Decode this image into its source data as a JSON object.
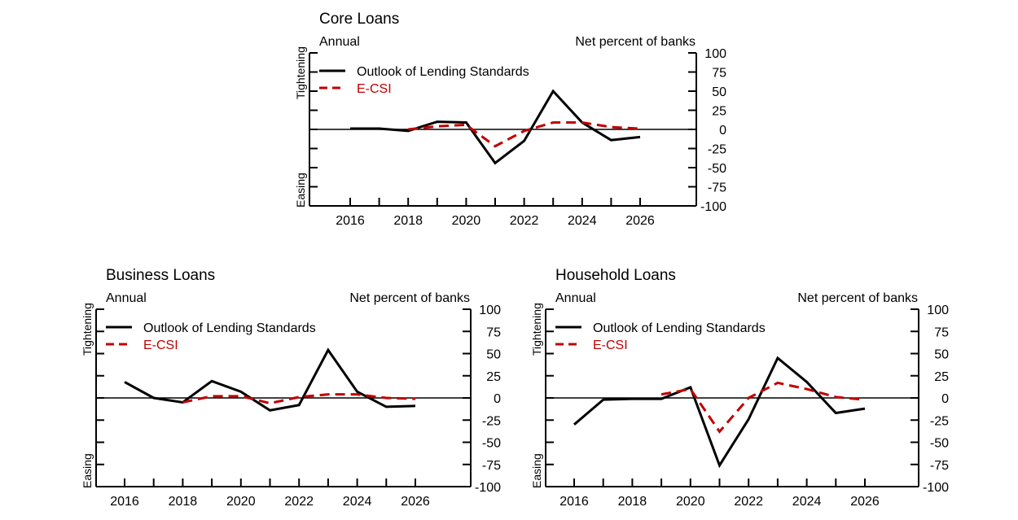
{
  "chart_data": [
    {
      "type": "line",
      "title": "Core Loans",
      "frequency_label": "Annual",
      "ylabel": "Net percent of banks",
      "top_annotation": "Tightening",
      "bottom_annotation": "Easing",
      "ylim": [
        -100,
        100
      ],
      "yticks": [
        100,
        75,
        50,
        25,
        0,
        -25,
        -50,
        -75,
        -100
      ],
      "xticks": [
        2016,
        2018,
        2020,
        2022,
        2024,
        2026
      ],
      "legend_position": "top-left",
      "series": [
        {
          "name": "Outlook of Lending Standards",
          "color": "#000000",
          "style": "solid",
          "x": [
            2016,
            2017,
            2018,
            2019,
            2020,
            2021,
            2022,
            2023,
            2024,
            2025,
            2026
          ],
          "y": [
            1,
            1,
            -2,
            10,
            9,
            -44,
            -15,
            50,
            9,
            -14,
            -10
          ]
        },
        {
          "name": "E-CSI",
          "color": "#c00000",
          "style": "dashed",
          "x": [
            2018,
            2019,
            2020,
            2021,
            2022,
            2023,
            2024,
            2025,
            2026
          ],
          "y": [
            0,
            4,
            6,
            -22,
            -2,
            9,
            9,
            3,
            1
          ]
        }
      ]
    },
    {
      "type": "line",
      "title": "Business Loans",
      "frequency_label": "Annual",
      "ylabel": "Net percent of banks",
      "top_annotation": "Tightening",
      "bottom_annotation": "Easing",
      "ylim": [
        -100,
        100
      ],
      "yticks": [
        100,
        75,
        50,
        25,
        0,
        -25,
        -50,
        -75,
        -100
      ],
      "xticks": [
        2016,
        2018,
        2020,
        2022,
        2024,
        2026
      ],
      "legend_position": "top-left",
      "series": [
        {
          "name": "Outlook of Lending Standards",
          "color": "#000000",
          "style": "solid",
          "x": [
            2016,
            2017,
            2018,
            2019,
            2020,
            2021,
            2022,
            2023,
            2024,
            2025,
            2026
          ],
          "y": [
            18,
            0,
            -5,
            19,
            7,
            -14,
            -8,
            54,
            7,
            -10,
            -9
          ]
        },
        {
          "name": "E-CSI",
          "color": "#c00000",
          "style": "dashed",
          "x": [
            2018,
            2019,
            2020,
            2021,
            2022,
            2023,
            2024,
            2025,
            2026
          ],
          "y": [
            -5,
            2,
            2,
            -6,
            1,
            4,
            4,
            0,
            -1
          ]
        }
      ]
    },
    {
      "type": "line",
      "title": "Household Loans",
      "frequency_label": "Annual",
      "ylabel": "Net percent of banks",
      "top_annotation": "Tightening",
      "bottom_annotation": "Easing",
      "ylim": [
        -100,
        100
      ],
      "yticks": [
        100,
        75,
        50,
        25,
        0,
        -25,
        -50,
        -75,
        -100
      ],
      "xticks": [
        2016,
        2018,
        2020,
        2022,
        2024,
        2026
      ],
      "legend_position": "top-left",
      "series": [
        {
          "name": "Outlook of Lending Standards",
          "color": "#000000",
          "style": "solid",
          "x": [
            2016,
            2017,
            2018,
            2019,
            2020,
            2021,
            2022,
            2023,
            2024,
            2025,
            2026
          ],
          "y": [
            -30,
            -2,
            -1,
            -1,
            12,
            -76,
            -24,
            45,
            18,
            -17,
            -12
          ]
        },
        {
          "name": "E-CSI",
          "color": "#c00000",
          "style": "dashed",
          "x": [
            2019,
            2020,
            2021,
            2022,
            2023,
            2024,
            2025,
            2026
          ],
          "y": [
            4,
            10,
            -38,
            0,
            17,
            10,
            1,
            -2
          ]
        }
      ]
    }
  ]
}
